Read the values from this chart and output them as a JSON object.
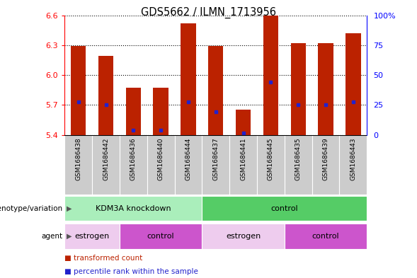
{
  "title": "GDS5662 / ILMN_1713956",
  "samples": [
    "GSM1686438",
    "GSM1686442",
    "GSM1686436",
    "GSM1686440",
    "GSM1686444",
    "GSM1686437",
    "GSM1686441",
    "GSM1686445",
    "GSM1686435",
    "GSM1686439",
    "GSM1686443"
  ],
  "transformed_counts": [
    6.29,
    6.19,
    5.87,
    5.87,
    6.52,
    6.29,
    5.65,
    6.6,
    6.32,
    6.32,
    6.42
  ],
  "percentile_ranks": [
    5.73,
    5.7,
    5.45,
    5.45,
    5.73,
    5.63,
    5.42,
    5.93,
    5.7,
    5.7,
    5.73
  ],
  "y_min": 5.4,
  "y_max": 6.6,
  "y_ticks": [
    5.4,
    5.7,
    6.0,
    6.3,
    6.6
  ],
  "right_y_ticks": [
    0,
    25,
    50,
    75,
    100
  ],
  "right_y_tick_labels": [
    "0",
    "25",
    "50",
    "75",
    "100%"
  ],
  "bar_color": "#bb2200",
  "percentile_color": "#2222cc",
  "genotype_groups": [
    {
      "label": "KDM3A knockdown",
      "start": 0,
      "end": 5,
      "color": "#aaeebb"
    },
    {
      "label": "control",
      "start": 5,
      "end": 11,
      "color": "#55cc66"
    }
  ],
  "agent_groups": [
    {
      "label": "estrogen",
      "start": 0,
      "end": 2,
      "color": "#eeccee"
    },
    {
      "label": "control",
      "start": 2,
      "end": 5,
      "color": "#cc55cc"
    },
    {
      "label": "estrogen",
      "start": 5,
      "end": 8,
      "color": "#eeccee"
    },
    {
      "label": "control",
      "start": 8,
      "end": 11,
      "color": "#cc55cc"
    }
  ],
  "legend_items": [
    {
      "label": "transformed count",
      "color": "#bb2200"
    },
    {
      "label": "percentile rank within the sample",
      "color": "#2222cc"
    }
  ],
  "left_label_genotype": "genotype/variation",
  "left_label_agent": "agent",
  "bar_width": 0.55,
  "title_fontsize": 10.5
}
